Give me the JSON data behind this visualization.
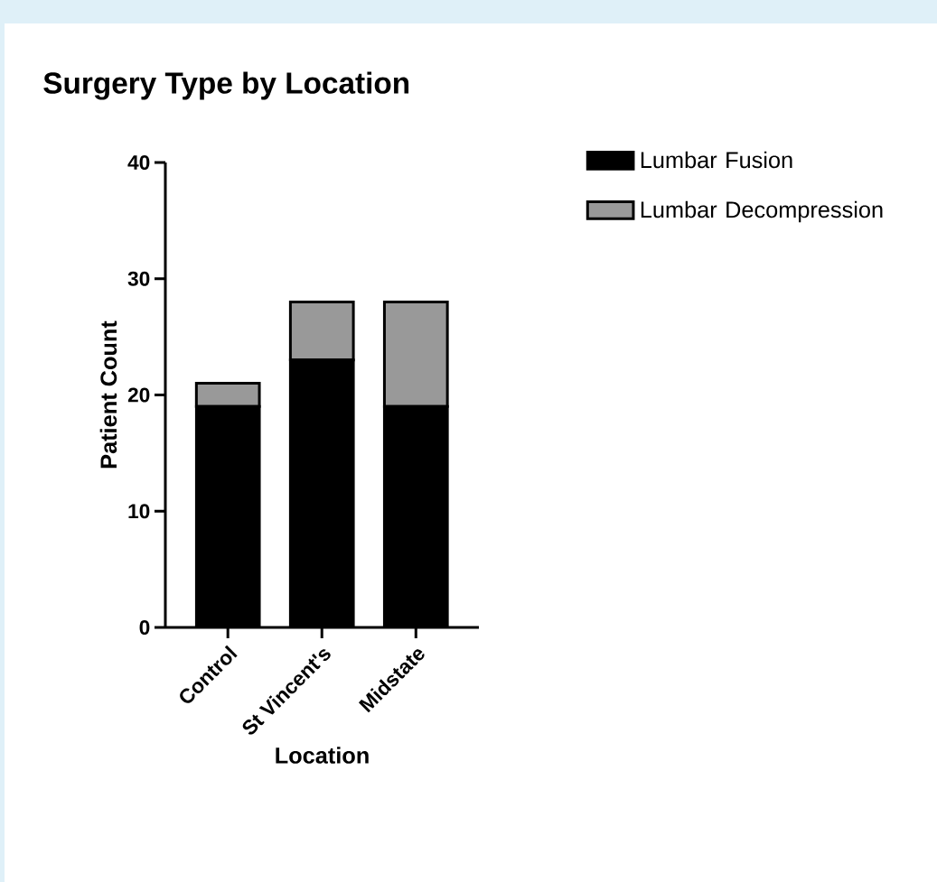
{
  "chart_data": {
    "type": "bar",
    "title": "Surgery Type by Location",
    "xlabel": "Location",
    "ylabel": "Patient Count",
    "categories": [
      "Control",
      "St Vincent's",
      "Midstate"
    ],
    "series": [
      {
        "name": "Lumbar Fusion",
        "color": "#000000",
        "values": [
          19,
          23,
          19
        ]
      },
      {
        "name": "Lumbar Decompression",
        "color": "#999999",
        "values": [
          2,
          5,
          9
        ]
      }
    ],
    "stacked": true,
    "ylim": [
      0,
      40
    ],
    "yticks": [
      0,
      10,
      20,
      30,
      40
    ],
    "legend": "top right"
  }
}
